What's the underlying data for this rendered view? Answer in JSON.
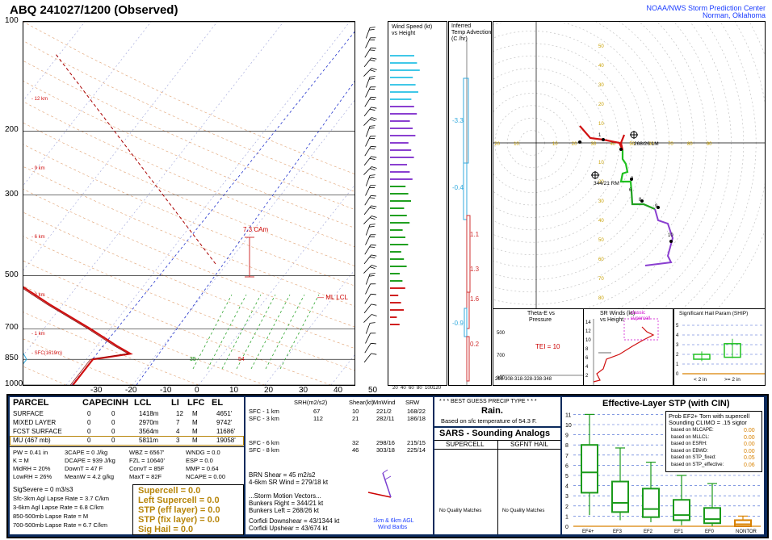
{
  "header": {
    "title": "ABQ   241027/1200  (Observed)",
    "org_line1": "NOAA/NWS Storm Prediction Center",
    "org_line2": "Norman, Oklahoma"
  },
  "chart_data": [
    {
      "type": "line",
      "name": "skewt",
      "pressure_ticks": [
        100,
        200,
        300,
        500,
        700,
        850,
        1000
      ],
      "temp_ticks": [
        -30,
        -20,
        -10,
        0,
        10,
        20,
        30,
        40,
        50
      ],
      "height_labels": [
        "12 km",
        "9 km",
        "6 km",
        "3 km",
        "1 km",
        "SFC(1619m)"
      ],
      "ml_lcl_label": "ML LCL",
      "cape_label": "7.3 CAm",
      "temp_annotations": [
        "35",
        "54"
      ]
    },
    {
      "type": "bar",
      "name": "wind_speed_vs_height",
      "title": "Wind Speed (kt)",
      "subtitle": "vs Height",
      "x_ticks": [
        "20",
        "40",
        "60",
        "80",
        "100",
        "120"
      ]
    },
    {
      "type": "bar",
      "name": "inferred_temp_advection",
      "title": "Inferred",
      "subtitle": "Temp Advection",
      "units": "(C /hr)",
      "values": [
        "-3.3",
        "-0.4",
        "1.1",
        "1.3",
        "1.6",
        "-0.9",
        "0.2"
      ]
    },
    {
      "type": "line",
      "name": "hodograph",
      "x_ticks": [
        "40",
        "30",
        "20",
        "10",
        "10",
        "20",
        "30",
        "40",
        "50",
        "60",
        "70",
        "80",
        "90"
      ],
      "y_ticks_up": [
        "50",
        "40",
        "30",
        "20",
        "10"
      ],
      "y_ticks_down": [
        "10",
        "20",
        "30",
        "40",
        "50",
        "60",
        "70",
        "80"
      ],
      "labels": {
        "left_mover": "268/26 LM",
        "right_mover": "344/21 RM"
      },
      "point_labels": [
        "1",
        "3",
        "6",
        "8",
        "9",
        "10"
      ]
    },
    {
      "type": "line",
      "name": "theta_e_vs_pressure",
      "title": "Theta-E vs",
      "subtitle": "Pressure",
      "y_ticks": [
        "500",
        "700",
        "900"
      ],
      "tei": "TEI = 10",
      "x_ticks": "298-308-318-328-338-348"
    },
    {
      "type": "line",
      "name": "sr_winds_vs_height",
      "title": "SR Winds (kt)",
      "subtitle": "vs Height",
      "legend": "classic supercell",
      "y_ticks": [
        "14",
        "12",
        "10",
        "8",
        "6",
        "4",
        "2"
      ]
    },
    {
      "type": "bar",
      "name": "ship",
      "title": "Significant Hail Param (SHIP)",
      "y_ticks": [
        "5",
        "4",
        "3",
        "2",
        "1",
        "0"
      ],
      "categories": [
        "< 2 in",
        ">= 2 in"
      ]
    },
    {
      "type": "bar",
      "name": "effective_layer_stp",
      "title": "Effective-Layer STP (with CIN)",
      "y_ticks": [
        "11",
        "10",
        "9",
        "8",
        "7",
        "6",
        "5",
        "4",
        "3",
        "2",
        "1",
        "0"
      ],
      "categories": [
        "EF4+",
        "EF3",
        "EF2",
        "EF1",
        "EF0",
        "NONTOR"
      ],
      "medians": [
        5.3,
        2.3,
        1.7,
        1.1,
        0.7,
        0.2
      ],
      "q1": [
        3.3,
        1.4,
        0.9,
        0.6,
        0.3,
        0.0
      ],
      "q3": [
        8.0,
        4.4,
        3.7,
        2.6,
        1.8,
        0.6
      ],
      "whisker_low": [
        1.1,
        0.6,
        0.4,
        0.1,
        0.0,
        0.0
      ],
      "whisker_high": [
        11.0,
        7.7,
        6.3,
        5.0,
        4.2,
        1.0
      ],
      "colors": {
        "box": "#1a9a1a",
        "nontor": "#d98200"
      }
    }
  ],
  "parcel_table": {
    "headers": [
      "PARCEL",
      "CAPE",
      "CINH",
      "LCL",
      "LI",
      "LFC",
      "EL"
    ],
    "rows": [
      [
        "SURFACE",
        "0",
        "0",
        "1418m",
        "12",
        "M",
        "4651'"
      ],
      [
        "MIXED LAYER",
        "0",
        "0",
        "2970m",
        "7",
        "M",
        "9742'"
      ],
      [
        "FCST SURFACE",
        "0",
        "0",
        "3564m",
        "4",
        "M",
        "11686'"
      ],
      [
        "MU   (467 mb)",
        "0",
        "0",
        "5811m",
        "3",
        "M",
        "19058'"
      ]
    ]
  },
  "thermo_params": [
    [
      "PW = 0.41 in",
      "3CAPE = 0 J/kg",
      "WBZ = 6567'",
      "WNDG = 0.0"
    ],
    [
      "K = M",
      "DCAPE = 939 J/kg",
      "FZL = 10640'",
      "ESP = 0.0"
    ],
    [
      "MidRH = 20%",
      "DownT = 47 F",
      "ConvT = 85F",
      "MMP = 0.64"
    ],
    [
      "LowRH = 26%",
      "MeanW = 4.2 g/kg",
      "MaxT = 82F",
      "NCAPE = 0.00"
    ]
  ],
  "sig_severe": "SigSevere = 0 m3/s3",
  "lapse_rates": [
    "Sfc-3km Agl Lapse Rate =   3.7 C/km",
    "3-6km Agl Lapse Rate =   6.8 C/km",
    "850-500mb Lapse Rate =   M",
    "700-500mb Lapse Rate =   6.7 C/km"
  ],
  "hot_params": [
    "Supercell = 0.0",
    "Left Supercell = 0.0",
    "STP (eff layer) = 0.0",
    "STP (fix layer) = 0.0",
    "Sig Hail = 0.0"
  ],
  "kinematics": {
    "headers": [
      "SRH(m2/s2)",
      "Shear(kt)",
      "MnWind",
      "SRW"
    ],
    "rows": [
      [
        "SFC - 1 km",
        "67",
        "10",
        "221/2",
        "168/22"
      ],
      [
        "SFC - 3 km",
        "112",
        "21",
        "282/11",
        "186/18"
      ],
      [
        "SFC - 6 km",
        "",
        "32",
        "298/16",
        "215/15"
      ],
      [
        "SFC - 8 km",
        "",
        "46",
        "303/18",
        "225/14"
      ]
    ],
    "brn_shear": "BRN Shear = 45 m2/s2",
    "sr_wind": "4-6km SR Wind =          279/18 kt",
    "storm_motion_title": "...Storm Motion Vectors...",
    "bunkers_right": "Bunkers Right =           344/21 kt",
    "bunkers_left": "Bunkers Left =             268/26 kt",
    "corfidi_down": "Corfidi Downshear = 43/1344 kt",
    "corfidi_up": "Corfidi Upshear =           43/674 kt",
    "barb_label_1": "1km & 6km AGL",
    "barb_label_2": "Wind Barbs"
  },
  "precip": {
    "title": "* * * BEST GUESS PRECIP TYPE * * *",
    "value": "Rain.",
    "note": "Based on sfc temperature of 54.3 F."
  },
  "sars": {
    "title": "SARS - Sounding Analogs",
    "col1": "SUPERCELL",
    "col2": "SGFNT HAIL",
    "col1_result": "No Quality Matches",
    "col2_result": "No Quality Matches"
  },
  "stp_info": {
    "line1": "Prob EF2+ Torn with supercell",
    "line2": "Sounding CLIMO = .15 sigtor",
    "rows": [
      [
        "based on MLCAPE:",
        "0.00"
      ],
      [
        "based on MLLCL:",
        "0.00"
      ],
      [
        "based on ESRH:",
        "0.00"
      ],
      [
        "based on EBWD:",
        "0.00"
      ],
      [
        "based on STP_fixed:",
        "0.05"
      ],
      [
        "based on STP_effective:",
        "0.06"
      ]
    ]
  }
}
